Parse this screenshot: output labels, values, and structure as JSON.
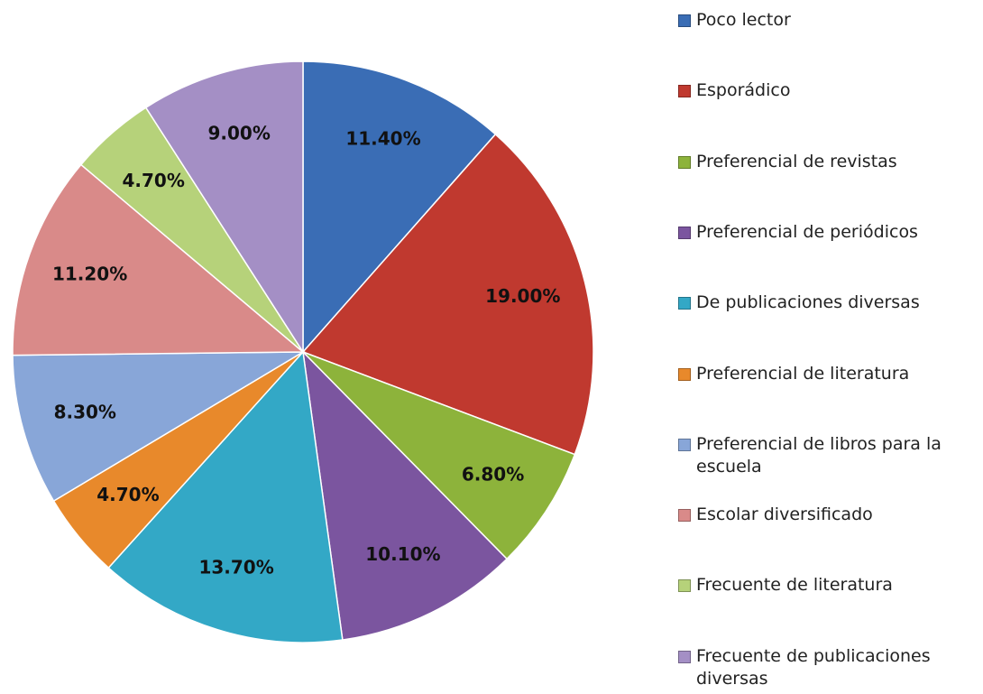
{
  "chart_data": {
    "type": "pie",
    "categories": [
      "Poco lector",
      "Esporádico",
      "Preferencial de revistas",
      "Preferencial de periódicos",
      "De publicaciones diversas",
      "Preferencial de literatura",
      "Preferencial de libros para la escuela",
      "Escolar diversificado",
      "Frecuente de literatura",
      "Frecuente de publicaciones diversas"
    ],
    "values": [
      11.4,
      19.0,
      6.8,
      10.1,
      13.7,
      4.7,
      8.3,
      11.2,
      4.7,
      9.0
    ],
    "value_labels": [
      "11.40%",
      "19.00%",
      "6.80%",
      "10.10%",
      "13.70%",
      "4.70%",
      "8.30%",
      "11.20%",
      "4.70%",
      "9.00%"
    ],
    "colors": [
      "#3a6db5",
      "#c0392f",
      "#8db33b",
      "#7b559f",
      "#33a8c6",
      "#e8892b",
      "#88a6d8",
      "#d98a89",
      "#b6d27a",
      "#a48fc5"
    ],
    "legend": "right"
  }
}
